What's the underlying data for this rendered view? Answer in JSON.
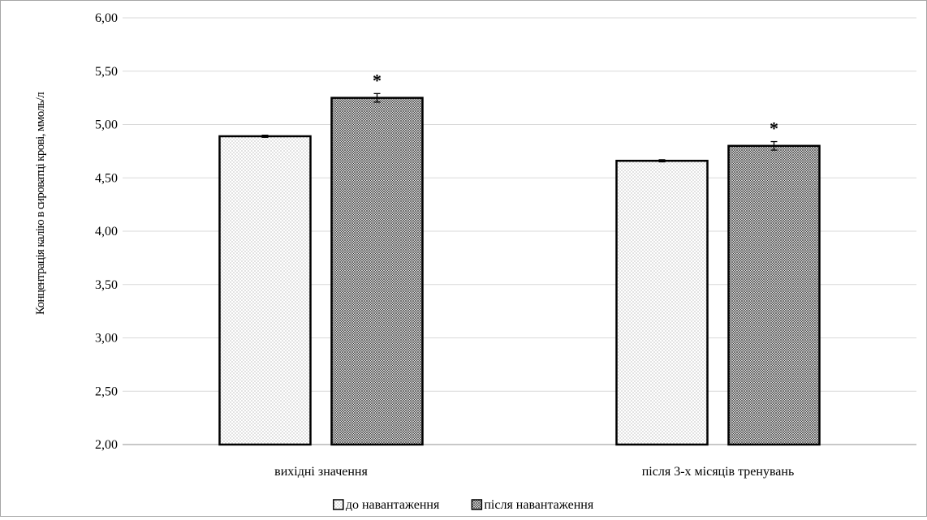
{
  "chart_data": {
    "type": "bar",
    "title": "",
    "xlabel": "",
    "ylabel": "Концентрація калію в сироватці крові, ммоль/л",
    "ylim": [
      2.0,
      6.0
    ],
    "yticks": [
      2.0,
      2.5,
      3.0,
      3.5,
      4.0,
      4.5,
      5.0,
      5.5,
      6.0
    ],
    "ytick_labels": [
      "2,00",
      "2,50",
      "3,00",
      "3,50",
      "4,00",
      "4,50",
      "5,00",
      "5,50",
      "6,00"
    ],
    "grid": true,
    "legend_position": "bottom",
    "categories": [
      "вихідні значення",
      "після 3-х місяців тренувань"
    ],
    "series": [
      {
        "name": "до навантаження",
        "values": [
          4.89,
          4.66
        ],
        "errors": [
          0.01,
          0.01
        ],
        "pattern": "light-dots",
        "annotations": [
          "",
          ""
        ]
      },
      {
        "name": "після навантаження",
        "values": [
          5.25,
          4.8
        ],
        "errors": [
          0.04,
          0.04
        ],
        "pattern": "dark-dots",
        "annotations": [
          "*",
          "*"
        ]
      }
    ]
  },
  "colors": {
    "axis": "#a6a6a6",
    "grid": "#d9d9d9",
    "bar_stroke": "#000000",
    "light_fill_bg": "#ffffff",
    "light_fill_dot": "#9a9a9a",
    "dark_fill_bg": "#d4d4d4",
    "dark_fill_dot": "#2b2b2b",
    "text": "#000000"
  }
}
